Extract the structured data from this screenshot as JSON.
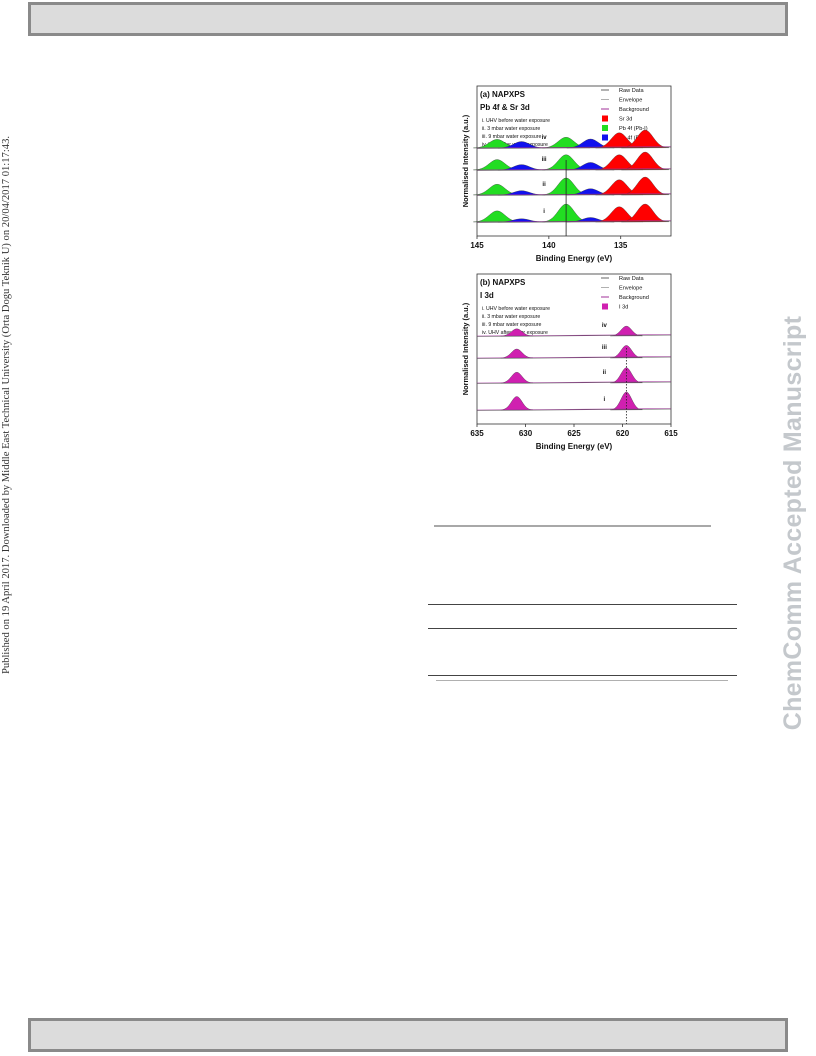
{
  "side_note": "Published on 19 April 2017. Downloaded by Middle East Technical University (Orta Dogu Teknik U) on 20/04/2017 01:17:43.",
  "watermark": "ChemComm Accepted Manuscript",
  "chart_data": [
    {
      "type": "area",
      "panel_label": "(a) NAPXPS",
      "subtitle": "Pb 4f & Sr 3d",
      "xlabel": "Binding Energy (eV)",
      "ylabel": "Normalised Intensity (a.u.)",
      "xlim": [
        145,
        131.5
      ],
      "x_reversed": true,
      "xticks": [
        "145",
        "140",
        "135"
      ],
      "conditions": [
        "i. UHV before water exposure",
        "ii. 3 mbar water exposure",
        "iii. 9 mbar water exposure",
        "iv. UHV after water exposure"
      ],
      "spectra_labels": [
        "i",
        "ii",
        "iii",
        "iv"
      ],
      "legend": [
        {
          "label": "Raw Data",
          "color": "#666666",
          "kind": "line"
        },
        {
          "label": "Envelope",
          "color": "#b0b0b0",
          "kind": "line"
        },
        {
          "label": "Background",
          "color": "#a0309a",
          "kind": "line"
        },
        {
          "label": "Sr 3d",
          "color": "#ff0000",
          "kind": "box"
        },
        {
          "label": "Pb 4f (Pb-I)",
          "color": "#22dd22",
          "kind": "box"
        },
        {
          "label": "Pb 4f (Pb-Pb)",
          "color": "#1111ee",
          "kind": "box"
        }
      ],
      "peaks": [
        {
          "component": "Pb 4f (Pb-I)",
          "center_eV": 143.6,
          "color": "#22dd22",
          "heights": [
            0.62,
            0.6,
            0.58,
            0.48
          ]
        },
        {
          "component": "Pb 4f (Pb-Pb)",
          "center_eV": 141.9,
          "color": "#1111ee",
          "heights": [
            0.18,
            0.24,
            0.3,
            0.36
          ]
        },
        {
          "component": "Pb 4f (Pb-I)",
          "center_eV": 138.8,
          "color": "#22dd22",
          "heights": [
            1.0,
            0.95,
            0.85,
            0.6
          ]
        },
        {
          "component": "Pb 4f (Pb-Pb)",
          "center_eV": 137.1,
          "color": "#1111ee",
          "heights": [
            0.25,
            0.35,
            0.42,
            0.5
          ]
        },
        {
          "component": "Sr 3d",
          "center_eV": 135.1,
          "color": "#ff0000",
          "heights": [
            0.85,
            0.85,
            0.85,
            0.85
          ]
        },
        {
          "component": "Sr 3d",
          "center_eV": 133.3,
          "color": "#ff0000",
          "heights": [
            1.0,
            1.0,
            1.0,
            1.0
          ]
        }
      ],
      "reference_line_eV": 138.8
    },
    {
      "type": "area",
      "panel_label": "(b) NAPXPS",
      "subtitle": "I 3d",
      "xlabel": "Binding Energy (eV)",
      "ylabel": "Normalised Intensity (a.u.)",
      "xlim": [
        635,
        615
      ],
      "x_reversed": true,
      "xticks": [
        "635",
        "630",
        "625",
        "620",
        "615"
      ],
      "conditions": [
        "i. UHV before water exposure",
        "ii. 3 mbar water exposure",
        "iii. 9 mbar water exposure",
        "iv. UHV after water exposure"
      ],
      "spectra_labels": [
        "i",
        "ii",
        "iii",
        "iv"
      ],
      "legend": [
        {
          "label": "Raw Data",
          "color": "#666666",
          "kind": "line"
        },
        {
          "label": "Envelope",
          "color": "#b0b0b0",
          "kind": "line"
        },
        {
          "label": "Background",
          "color": "#a0309a",
          "kind": "line"
        },
        {
          "label": "I 3d",
          "color": "#d020b0",
          "kind": "box"
        }
      ],
      "peaks": [
        {
          "component": "I 3d",
          "center_eV": 630.9,
          "color": "#d020b0",
          "heights": [
            0.75,
            0.6,
            0.5,
            0.4
          ]
        },
        {
          "component": "I 3d",
          "center_eV": 619.6,
          "color": "#d020b0",
          "heights": [
            1.0,
            0.85,
            0.7,
            0.55
          ]
        }
      ],
      "reference_line_eV": 619.6
    }
  ]
}
